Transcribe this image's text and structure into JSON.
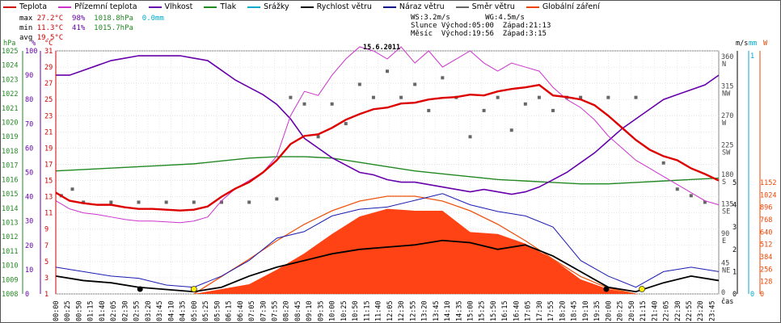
{
  "legend": [
    {
      "name": "Teplota",
      "color": "#cc0000"
    },
    {
      "name": "Přízemní teplota",
      "color": "#cc33cc"
    },
    {
      "name": "Vlhkost",
      "color": "#6600aa"
    },
    {
      "name": "Tlak",
      "color": "#228822"
    },
    {
      "name": "Srážky",
      "color": "#00aacc"
    },
    {
      "name": "Rychlost větru",
      "color": "#000000"
    },
    {
      "name": "Náraz větru",
      "color": "#000088"
    },
    {
      "name": "Směr větru",
      "color": "#666666"
    },
    {
      "name": "Globální záření",
      "color": "#ee4400"
    }
  ],
  "stats": {
    "max_label": "max",
    "min_label": "min",
    "avg_label": "avg",
    "max_temp": "27.2°C",
    "max_hum": "98%",
    "max_press": "1018.8hPa",
    "max_rain": "0.0mm",
    "min_temp": "11.3°C",
    "min_hum": "41%",
    "min_press": "1015.7hPa",
    "avg_temp": "19.5°C"
  },
  "wind_sun": {
    "line1": "WS:3.2m/s        WG:4.5m/s",
    "line2": "Slunce Východ:05:00  Západ:21:13",
    "line3": "Měsíc  Východ:19:56  Západ:3:15"
  },
  "chart_data": {
    "type": "line",
    "title": "15.6.2011",
    "x_unit": "čas",
    "x_ticks": [
      "00:00",
      "00:25",
      "00:50",
      "01:15",
      "01:40",
      "02:05",
      "02:30",
      "02:55",
      "03:20",
      "03:45",
      "04:10",
      "04:35",
      "05:00",
      "05:25",
      "05:50",
      "06:15",
      "06:40",
      "07:05",
      "07:30",
      "07:55",
      "08:20",
      "08:45",
      "09:10",
      "09:35",
      "10:00",
      "10:25",
      "10:50",
      "11:15",
      "11:40",
      "12:05",
      "12:30",
      "12:55",
      "13:20",
      "13:45",
      "14:10",
      "14:35",
      "15:00",
      "15:25",
      "15:50",
      "16:15",
      "16:40",
      "17:05",
      "17:30",
      "17:55",
      "18:20",
      "18:45",
      "19:10",
      "19:35",
      "20:00",
      "20:25",
      "20:50",
      "21:15",
      "21:40",
      "22:05",
      "22:30",
      "22:55",
      "23:20",
      "23:45"
    ],
    "left_axes": [
      {
        "unit": "hPa",
        "color": "#228822",
        "ticks": [
          "1025",
          "1024",
          "1023",
          "1022",
          "1021",
          "1020",
          "1019",
          "1018",
          "1017",
          "1016",
          "1015",
          "1014",
          "1013",
          "1012",
          "1011",
          "1010",
          "1009",
          "1008"
        ]
      },
      {
        "unit": "%",
        "color": "#6600aa",
        "ticks": [
          "100",
          "90",
          "80",
          "70",
          "60",
          "50",
          "40",
          "30",
          "20",
          "10",
          "0"
        ]
      },
      {
        "unit": "°C",
        "color": "#cc0000",
        "ticks": [
          "31",
          "29",
          "27",
          "25",
          "23",
          "21",
          "19",
          "17",
          "15",
          "13",
          "11",
          "9",
          "7",
          "5",
          "3",
          "1"
        ]
      }
    ],
    "right_axes": [
      {
        "unit": "m/s",
        "color": "#000000",
        "ticks": [
          "5",
          "4",
          "3",
          "2",
          "1",
          "0"
        ]
      },
      {
        "unit": "mm",
        "color": "#00aacc",
        "ticks": [
          "1",
          "0"
        ]
      },
      {
        "unit": "W",
        "color": "#ee4400",
        "ticks": [
          "1152",
          "1024",
          "896",
          "768",
          "640",
          "512",
          "384",
          "256",
          "128",
          "0"
        ]
      }
    ],
    "direction_ticks": [
      {
        "deg": "360",
        "dir": "N"
      },
      {
        "deg": "315",
        "dir": "NW"
      },
      {
        "deg": "270",
        "dir": "W"
      },
      {
        "deg": "225",
        "dir": "SW"
      },
      {
        "deg": "180",
        "dir": "S"
      },
      {
        "deg": "135",
        "dir": "SE"
      },
      {
        "deg": "90",
        "dir": "E"
      },
      {
        "deg": "45",
        "dir": "NE"
      },
      {
        "deg": "0",
        "dir": ""
      }
    ],
    "series": [
      {
        "name": "Teplota",
        "unit": "°C",
        "x": [
          0,
          0.5,
          1,
          1.5,
          2,
          2.5,
          3,
          3.5,
          4,
          4.5,
          5,
          5.5,
          6,
          6.5,
          7,
          7.5,
          8,
          8.5,
          9,
          9.5,
          10,
          10.5,
          11,
          11.5,
          12,
          12.5,
          13,
          13.5,
          14,
          14.5,
          15,
          15.5,
          16,
          16.5,
          17,
          17.5,
          18,
          18.5,
          19,
          19.5,
          20,
          20.5,
          21,
          21.5,
          22,
          22.5,
          23,
          23.5,
          24
        ],
        "values": [
          13.5,
          12.5,
          12.2,
          12.0,
          12.0,
          11.7,
          11.5,
          11.5,
          11.4,
          11.3,
          11.4,
          11.8,
          13.0,
          14.0,
          14.8,
          16.0,
          17.5,
          19.5,
          20.5,
          20.7,
          21.5,
          22.5,
          23.2,
          23.8,
          24.0,
          24.5,
          24.6,
          25.0,
          25.2,
          25.3,
          25.6,
          25.5,
          26.0,
          26.3,
          26.5,
          26.8,
          25.5,
          25.3,
          25.0,
          24.3,
          23.0,
          21.5,
          20.0,
          18.8,
          18.0,
          17.5,
          16.5,
          15.8,
          15.0
        ]
      },
      {
        "name": "Přízemní teplota",
        "unit": "°C",
        "x": [
          0,
          0.5,
          1,
          1.5,
          2,
          2.5,
          3,
          3.5,
          4,
          4.5,
          5,
          5.5,
          6,
          6.5,
          7,
          7.5,
          8,
          8.5,
          9,
          9.5,
          10,
          10.5,
          11,
          11.5,
          12,
          12.5,
          13,
          13.5,
          14,
          14.5,
          15,
          15.5,
          16,
          16.5,
          17,
          17.5,
          18,
          18.5,
          19,
          19.5,
          20,
          20.5,
          21,
          21.5,
          22,
          22.5,
          23,
          23.5,
          24
        ],
        "values": [
          12.5,
          11.5,
          11.0,
          10.8,
          10.5,
          10.2,
          10.0,
          10.0,
          9.9,
          9.8,
          10.0,
          10.5,
          12.5,
          14.0,
          15.0,
          16.0,
          18.0,
          23.0,
          26.0,
          25.5,
          28.0,
          30.0,
          31.5,
          31.0,
          30.0,
          31.5,
          29.5,
          31.0,
          29.0,
          30.0,
          31.0,
          29.5,
          28.5,
          29.5,
          29.0,
          28.5,
          26.5,
          25.0,
          24.0,
          22.5,
          20.5,
          19.0,
          17.5,
          16.5,
          15.5,
          14.5,
          13.5,
          12.5,
          12.0
        ]
      },
      {
        "name": "Vlhkost",
        "unit": "%",
        "x": [
          0,
          0.5,
          1,
          1.5,
          2,
          2.5,
          3,
          3.5,
          4,
          4.5,
          5,
          5.5,
          6,
          6.5,
          7,
          7.5,
          8,
          8.5,
          9,
          9.5,
          10,
          10.5,
          11,
          11.5,
          12,
          12.5,
          13,
          13.5,
          14,
          14.5,
          15,
          15.5,
          16,
          16.5,
          17,
          17.5,
          18,
          18.5,
          19,
          19.5,
          20,
          20.5,
          21,
          21.5,
          22,
          22.5,
          23,
          23.5,
          24
        ],
        "values": [
          90,
          90,
          92,
          94,
          96,
          97,
          98,
          98,
          98,
          98,
          97,
          96,
          92,
          88,
          85,
          82,
          78,
          72,
          64,
          60,
          56,
          53,
          50,
          49,
          47,
          46,
          46,
          45,
          44,
          43,
          42,
          43,
          42,
          41,
          42,
          44,
          47,
          50,
          54,
          58,
          63,
          68,
          72,
          76,
          80,
          82,
          84,
          86,
          90
        ]
      },
      {
        "name": "Tlak",
        "unit": "hPa",
        "x": [
          0,
          1,
          2,
          3,
          4,
          5,
          6,
          7,
          8,
          9,
          10,
          11,
          12,
          13,
          14,
          15,
          16,
          17,
          18,
          19,
          20,
          21,
          22,
          23,
          24
        ],
        "values": [
          1016.6,
          1016.7,
          1016.8,
          1016.9,
          1017.0,
          1017.1,
          1017.3,
          1017.5,
          1017.6,
          1017.6,
          1017.5,
          1017.2,
          1016.9,
          1016.6,
          1016.4,
          1016.2,
          1016.0,
          1015.9,
          1015.8,
          1015.7,
          1015.7,
          1015.8,
          1015.9,
          1016.0,
          1016.1
        ]
      },
      {
        "name": "Rychlost větru",
        "unit": "m/s",
        "x": [
          0,
          1,
          2,
          3,
          4,
          5,
          6,
          7,
          8,
          9,
          10,
          11,
          12,
          13,
          14,
          15,
          16,
          17,
          18,
          19,
          20,
          21,
          22,
          23,
          24
        ],
        "values": [
          0.8,
          0.6,
          0.5,
          0.3,
          0.2,
          0.1,
          0.3,
          0.8,
          1.2,
          1.5,
          1.8,
          2.0,
          2.1,
          2.2,
          2.4,
          2.3,
          2.0,
          2.2,
          1.7,
          1.0,
          0.3,
          0.1,
          0.5,
          0.8,
          0.6
        ]
      },
      {
        "name": "Náraz větru",
        "unit": "m/s",
        "x": [
          0,
          1,
          2,
          3,
          4,
          5,
          6,
          7,
          8,
          9,
          10,
          11,
          12,
          13,
          14,
          15,
          16,
          17,
          18,
          19,
          20,
          21,
          22,
          23,
          24
        ],
        "values": [
          1.2,
          1.0,
          0.8,
          0.7,
          0.4,
          0.3,
          0.8,
          1.5,
          2.5,
          2.8,
          3.5,
          3.8,
          3.9,
          4.2,
          4.5,
          4.0,
          3.7,
          3.5,
          3.0,
          1.5,
          0.8,
          0.3,
          1.0,
          1.2,
          1.0
        ]
      },
      {
        "name": "Globální záření",
        "unit": "W",
        "x": [
          0,
          4,
          5,
          6,
          7,
          8,
          9,
          10,
          11,
          12,
          13,
          14,
          15,
          16,
          17,
          18,
          19,
          20,
          21,
          24
        ],
        "values": [
          0,
          0,
          0,
          50,
          100,
          250,
          420,
          620,
          800,
          880,
          860,
          860,
          640,
          620,
          520,
          360,
          150,
          50,
          0,
          0
        ]
      },
      {
        "name": "Směr větru",
        "unit": "°",
        "x": [
          0.2,
          0.6,
          1,
          2,
          3,
          4,
          5,
          6,
          7,
          8,
          8.5,
          9,
          9.5,
          10,
          10.5,
          11,
          11.5,
          12,
          12.5,
          13,
          13.5,
          14,
          14.5,
          15,
          15.5,
          16,
          16.5,
          17,
          17.5,
          18,
          18.5,
          19,
          20,
          21,
          22,
          22.5,
          23,
          23.5
        ],
        "values": [
          150,
          160,
          140,
          140,
          140,
          140,
          140,
          140,
          140,
          145,
          300,
          290,
          240,
          290,
          260,
          320,
          300,
          340,
          300,
          320,
          280,
          330,
          300,
          240,
          280,
          300,
          250,
          290,
          300,
          280,
          300,
          300,
          300,
          300,
          200,
          160,
          150,
          140
        ]
      }
    ],
    "clear_sky_radiation": {
      "x": [
        5,
        6,
        7,
        8,
        9,
        10,
        11,
        12,
        13,
        14,
        15,
        16,
        17,
        18,
        19,
        20,
        21
      ],
      "values": [
        0,
        180,
        360,
        550,
        720,
        860,
        960,
        1010,
        1010,
        960,
        860,
        720,
        550,
        360,
        180,
        60,
        0
      ]
    }
  }
}
